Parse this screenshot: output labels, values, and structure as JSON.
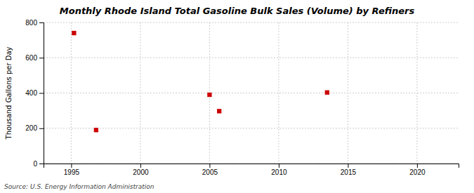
{
  "chart_data": {
    "type": "scatter",
    "title": "Monthly Rhode Island Total Gasoline Bulk Sales (Volume) by Refiners",
    "ylabel": "Thousand Gallons per Day",
    "source": "Source: U.S. Energy Information Administration",
    "x": [
      1995.2,
      1996.8,
      2005.0,
      2005.7,
      2013.5
    ],
    "values": [
      740,
      190,
      390,
      297,
      403
    ],
    "color": "#cc0000",
    "marker": "square",
    "xlim": [
      1993,
      2023
    ],
    "ylim": [
      0,
      800
    ],
    "xticks": [
      1995,
      2000,
      2005,
      2010,
      2015,
      2020
    ],
    "yticks": [
      0,
      200,
      400,
      600,
      800
    ],
    "grid": true
  }
}
